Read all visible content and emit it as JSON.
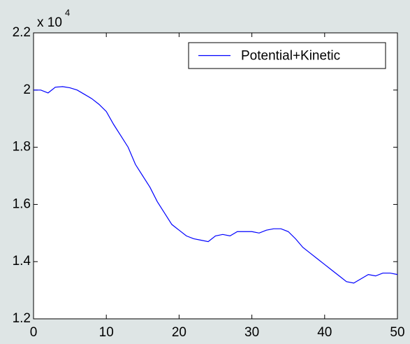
{
  "chart_data": {
    "type": "line",
    "exponent_base": "x 10",
    "exponent_power": "4",
    "x": [
      0,
      1,
      2,
      3,
      4,
      5,
      6,
      7,
      8,
      9,
      10,
      11,
      12,
      13,
      14,
      15,
      16,
      17,
      18,
      19,
      20,
      21,
      22,
      23,
      24,
      25,
      26,
      27,
      28,
      29,
      30,
      31,
      32,
      33,
      34,
      35,
      36,
      37,
      38,
      39,
      40,
      41,
      42,
      43,
      44,
      45,
      46,
      47,
      48,
      49,
      50
    ],
    "series": [
      {
        "name": "Potential+Kinetic",
        "color": "#0000ff",
        "values": [
          2.0,
          2.0,
          1.99,
          2.01,
          2.012,
          2.008,
          2.0,
          1.985,
          1.97,
          1.95,
          1.925,
          1.88,
          1.84,
          1.8,
          1.74,
          1.7,
          1.66,
          1.61,
          1.57,
          1.53,
          1.51,
          1.49,
          1.48,
          1.475,
          1.47,
          1.49,
          1.495,
          1.49,
          1.505,
          1.505,
          1.505,
          1.5,
          1.51,
          1.515,
          1.515,
          1.505,
          1.48,
          1.45,
          1.43,
          1.41,
          1.39,
          1.37,
          1.35,
          1.33,
          1.325,
          1.34,
          1.355,
          1.35,
          1.36,
          1.36,
          1.355
        ]
      }
    ],
    "xlim": [
      0,
      50
    ],
    "xticks": [
      0,
      10,
      20,
      30,
      40,
      50
    ],
    "ylim": [
      1.2,
      2.2
    ],
    "yticks": [
      1.2,
      1.4,
      1.6,
      1.8,
      2,
      2.2
    ],
    "legend": "northeast"
  }
}
